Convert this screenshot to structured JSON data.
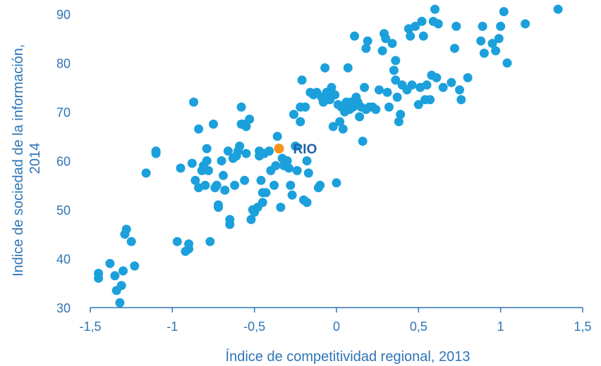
{
  "colors": {
    "points": "#1ca0dc",
    "highlight": "#f7941d",
    "text": "#2e75b6",
    "axis": "#2e75b6",
    "annotation": "#1f5fa8"
  },
  "chart_data": {
    "type": "scatter",
    "title": "",
    "xlabel": "Índice de competitividad regional, 2013",
    "ylabel_line1": "Indice de sociedad de la información,",
    "ylabel_line2": "2014",
    "xlim": [
      -1.5,
      1.5
    ],
    "ylim": [
      30,
      92
    ],
    "x_ticks": [
      -1.5,
      -1,
      -0.5,
      0,
      0.5,
      1,
      1.5
    ],
    "x_tick_labels": [
      "-1,5",
      "-1",
      "-0,5",
      "0",
      "0,5",
      "1",
      "1,5"
    ],
    "y_ticks": [
      30,
      40,
      50,
      60,
      70,
      80,
      90
    ],
    "y_tick_labels": [
      "30",
      "40",
      "50",
      "60",
      "70",
      "80",
      "90"
    ],
    "grid": false,
    "highlight": {
      "label": "RIO",
      "x": -0.35,
      "y": 62.5
    },
    "points": [
      [
        -1.45,
        37
      ],
      [
        -1.45,
        36
      ],
      [
        -1.38,
        39
      ],
      [
        -1.35,
        36.5
      ],
      [
        -1.34,
        33.5
      ],
      [
        -1.32,
        31
      ],
      [
        -1.31,
        34.5
      ],
      [
        -1.3,
        37.5
      ],
      [
        -1.29,
        45
      ],
      [
        -1.28,
        46
      ],
      [
        -1.25,
        43.5
      ],
      [
        -1.23,
        38.5
      ],
      [
        -1.16,
        57.5
      ],
      [
        -1.1,
        61.5
      ],
      [
        -1.1,
        62
      ],
      [
        -0.97,
        43.5
      ],
      [
        -0.95,
        58.5
      ],
      [
        -0.92,
        41.5
      ],
      [
        -0.9,
        43
      ],
      [
        -0.9,
        42
      ],
      [
        -0.88,
        59.5
      ],
      [
        -0.87,
        72
      ],
      [
        -0.86,
        56
      ],
      [
        -0.84,
        54.5
      ],
      [
        -0.84,
        66.5
      ],
      [
        -0.82,
        58
      ],
      [
        -0.81,
        59
      ],
      [
        -0.8,
        55
      ],
      [
        -0.79,
        60
      ],
      [
        -0.79,
        62.5
      ],
      [
        -0.78,
        58
      ],
      [
        -0.77,
        43.5
      ],
      [
        -0.75,
        67.5
      ],
      [
        -0.74,
        54.5
      ],
      [
        -0.73,
        55
      ],
      [
        -0.72,
        51
      ],
      [
        -0.72,
        50.5
      ],
      [
        -0.7,
        60
      ],
      [
        -0.69,
        57
      ],
      [
        -0.68,
        54
      ],
      [
        -0.66,
        62
      ],
      [
        -0.65,
        48
      ],
      [
        -0.65,
        47
      ],
      [
        -0.63,
        60.5
      ],
      [
        -0.62,
        55
      ],
      [
        -0.61,
        61
      ],
      [
        -0.6,
        62
      ],
      [
        -0.59,
        63
      ],
      [
        -0.58,
        71
      ],
      [
        -0.58,
        67.5
      ],
      [
        -0.57,
        67.5
      ],
      [
        -0.56,
        56
      ],
      [
        -0.55,
        61.5
      ],
      [
        -0.55,
        67
      ],
      [
        -0.53,
        68.5
      ],
      [
        -0.52,
        48
      ],
      [
        -0.51,
        50
      ],
      [
        -0.5,
        49.5
      ],
      [
        -0.48,
        50.5
      ],
      [
        -0.47,
        61
      ],
      [
        -0.47,
        62
      ],
      [
        -0.46,
        56
      ],
      [
        -0.45,
        53.5
      ],
      [
        -0.45,
        51.5
      ],
      [
        -0.44,
        61.5
      ],
      [
        -0.43,
        53.5
      ],
      [
        -0.41,
        62
      ],
      [
        -0.4,
        58
      ],
      [
        -0.38,
        55
      ],
      [
        -0.37,
        59
      ],
      [
        -0.36,
        65
      ],
      [
        -0.35,
        62.5
      ],
      [
        -0.34,
        50.5
      ],
      [
        -0.33,
        60.5
      ],
      [
        -0.32,
        59
      ],
      [
        -0.3,
        60
      ],
      [
        -0.29,
        58.5
      ],
      [
        -0.28,
        55
      ],
      [
        -0.27,
        53
      ],
      [
        -0.26,
        69.5
      ],
      [
        -0.25,
        63
      ],
      [
        -0.24,
        58
      ],
      [
        -0.22,
        71
      ],
      [
        -0.22,
        68
      ],
      [
        -0.21,
        76.5
      ],
      [
        -0.2,
        52
      ],
      [
        -0.19,
        71
      ],
      [
        -0.18,
        51.5
      ],
      [
        -0.18,
        60
      ],
      [
        -0.17,
        57.5
      ],
      [
        -0.16,
        74
      ],
      [
        -0.14,
        73.5
      ],
      [
        -0.12,
        74
      ],
      [
        -0.11,
        54.5
      ],
      [
        -0.1,
        55
      ],
      [
        -0.09,
        73
      ],
      [
        -0.08,
        72
      ],
      [
        -0.07,
        79
      ],
      [
        -0.06,
        74
      ],
      [
        -0.04,
        72.5
      ],
      [
        -0.03,
        75
      ],
      [
        -0.02,
        67
      ],
      [
        -0.01,
        73.5
      ],
      [
        0,
        55.5
      ],
      [
        0.01,
        71.5
      ],
      [
        0.02,
        68
      ],
      [
        0.03,
        71
      ],
      [
        0.04,
        66.5
      ],
      [
        0.05,
        70
      ],
      [
        0.06,
        72
      ],
      [
        0.07,
        79
      ],
      [
        0.08,
        70.5
      ],
      [
        0.09,
        72
      ],
      [
        0.1,
        71
      ],
      [
        0.11,
        85.5
      ],
      [
        0.12,
        73
      ],
      [
        0.13,
        72
      ],
      [
        0.14,
        69
      ],
      [
        0.15,
        71
      ],
      [
        0.16,
        64
      ],
      [
        0.17,
        75
      ],
      [
        0.18,
        70.5
      ],
      [
        0.18,
        83
      ],
      [
        0.19,
        84.5
      ],
      [
        0.2,
        71
      ],
      [
        0.22,
        71
      ],
      [
        0.24,
        70.5
      ],
      [
        0.26,
        74.5
      ],
      [
        0.28,
        82.5
      ],
      [
        0.29,
        86
      ],
      [
        0.3,
        85
      ],
      [
        0.31,
        74
      ],
      [
        0.32,
        71
      ],
      [
        0.34,
        84
      ],
      [
        0.35,
        78.5
      ],
      [
        0.36,
        80.5
      ],
      [
        0.36,
        76.5
      ],
      [
        0.37,
        73
      ],
      [
        0.38,
        68
      ],
      [
        0.39,
        69.5
      ],
      [
        0.4,
        75.5
      ],
      [
        0.43,
        74.5
      ],
      [
        0.44,
        87
      ],
      [
        0.45,
        85.5
      ],
      [
        0.46,
        75.5
      ],
      [
        0.48,
        87.5
      ],
      [
        0.5,
        71.5
      ],
      [
        0.51,
        75
      ],
      [
        0.52,
        88.5
      ],
      [
        0.53,
        85.5
      ],
      [
        0.54,
        72.5
      ],
      [
        0.55,
        75.5
      ],
      [
        0.57,
        72.5
      ],
      [
        0.58,
        77.5
      ],
      [
        0.59,
        88.5
      ],
      [
        0.6,
        91
      ],
      [
        0.61,
        77
      ],
      [
        0.62,
        88
      ],
      [
        0.65,
        75
      ],
      [
        0.7,
        76
      ],
      [
        0.72,
        83
      ],
      [
        0.73,
        87.5
      ],
      [
        0.75,
        74.5
      ],
      [
        0.76,
        72.5
      ],
      [
        0.8,
        77
      ],
      [
        0.88,
        84.5
      ],
      [
        0.89,
        87.5
      ],
      [
        0.9,
        82
      ],
      [
        0.95,
        84
      ],
      [
        0.97,
        82.5
      ],
      [
        0.99,
        85
      ],
      [
        1,
        87.5
      ],
      [
        1.02,
        90.5
      ],
      [
        1.04,
        80
      ],
      [
        1.15,
        88
      ],
      [
        1.35,
        91
      ]
    ]
  }
}
